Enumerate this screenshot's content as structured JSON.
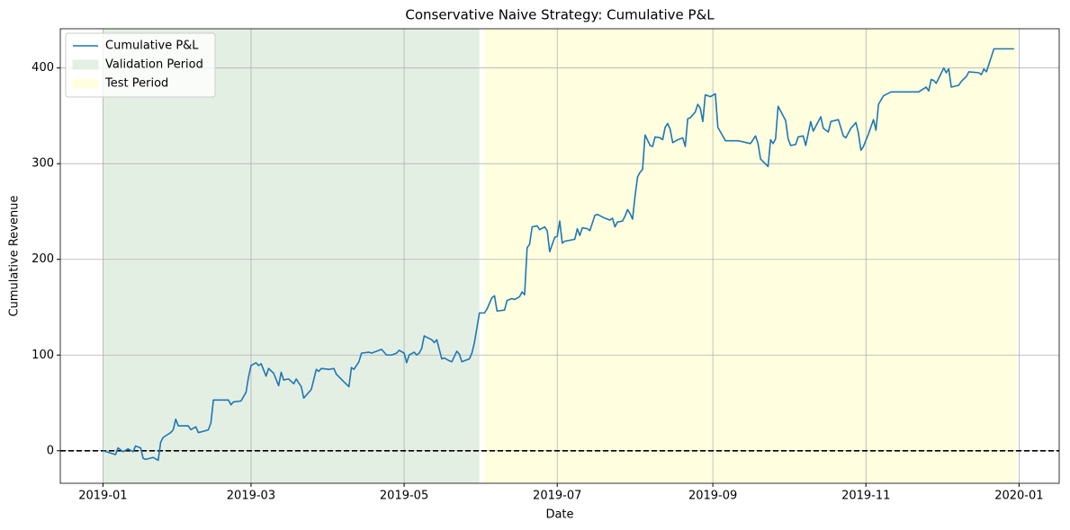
{
  "chart_data": {
    "type": "line",
    "title": "Conservative Naive Strategy: Cumulative P&L",
    "x_label": "Date",
    "y_label": "Cumulative Revenue",
    "x": [
      "2019-01-01",
      "2019-01-06",
      "2019-01-07",
      "2019-01-09",
      "2019-01-11",
      "2019-01-13",
      "2019-01-14",
      "2019-01-16",
      "2019-01-17",
      "2019-01-18",
      "2019-01-21",
      "2019-01-23",
      "2019-01-24",
      "2019-01-25",
      "2019-01-28",
      "2019-01-29",
      "2019-01-30",
      "2019-01-31",
      "2019-02-04",
      "2019-02-05",
      "2019-02-07",
      "2019-02-08",
      "2019-02-11",
      "2019-02-12",
      "2019-02-13",
      "2019-02-14",
      "2019-02-20",
      "2019-02-21",
      "2019-02-22",
      "2019-02-25",
      "2019-02-27",
      "2019-02-28",
      "2019-03-01",
      "2019-03-03",
      "2019-03-04",
      "2019-03-05",
      "2019-03-07",
      "2019-03-08",
      "2019-03-10",
      "2019-03-12",
      "2019-03-13",
      "2019-03-14",
      "2019-03-16",
      "2019-03-18",
      "2019-03-19",
      "2019-03-21",
      "2019-03-22",
      "2019-03-25",
      "2019-03-27",
      "2019-03-28",
      "2019-03-29",
      "2019-04-01",
      "2019-04-03",
      "2019-04-04",
      "2019-04-07",
      "2019-04-09",
      "2019-04-10",
      "2019-04-11",
      "2019-04-13",
      "2019-04-14",
      "2019-04-17",
      "2019-04-18",
      "2019-04-20",
      "2019-04-22",
      "2019-04-24",
      "2019-04-26",
      "2019-04-28",
      "2019-04-29",
      "2019-05-01",
      "2019-05-02",
      "2019-05-03",
      "2019-05-05",
      "2019-05-06",
      "2019-05-07",
      "2019-05-08",
      "2019-05-09",
      "2019-05-12",
      "2019-05-13",
      "2019-05-14",
      "2019-05-16",
      "2019-05-17",
      "2019-05-19",
      "2019-05-20",
      "2019-05-22",
      "2019-05-23",
      "2019-05-24",
      "2019-05-25",
      "2019-05-27",
      "2019-05-28",
      "2019-05-29",
      "2019-05-31",
      "2019-06-02",
      "2019-06-03",
      "2019-06-05",
      "2019-06-06",
      "2019-06-07",
      "2019-06-10",
      "2019-06-11",
      "2019-06-13",
      "2019-06-14",
      "2019-06-16",
      "2019-06-17",
      "2019-06-18",
      "2019-06-19",
      "2019-06-20",
      "2019-06-21",
      "2019-06-23",
      "2019-06-24",
      "2019-06-26",
      "2019-06-27",
      "2019-06-28",
      "2019-06-30",
      "2019-07-01",
      "2019-07-02",
      "2019-07-03",
      "2019-07-04",
      "2019-07-08",
      "2019-07-09",
      "2019-07-10",
      "2019-07-11",
      "2019-07-13",
      "2019-07-14",
      "2019-07-16",
      "2019-07-17",
      "2019-07-20",
      "2019-07-22",
      "2019-07-23",
      "2019-07-24",
      "2019-07-25",
      "2019-07-27",
      "2019-07-28",
      "2019-07-29",
      "2019-07-30",
      "2019-07-31",
      "2019-08-01",
      "2019-08-02",
      "2019-08-03",
      "2019-08-04",
      "2019-08-05",
      "2019-08-07",
      "2019-08-08",
      "2019-08-09",
      "2019-08-11",
      "2019-08-12",
      "2019-08-13",
      "2019-08-14",
      "2019-08-15",
      "2019-08-16",
      "2019-08-18",
      "2019-08-20",
      "2019-08-21",
      "2019-08-22",
      "2019-08-23",
      "2019-08-25",
      "2019-08-26",
      "2019-08-27",
      "2019-08-28",
      "2019-08-29",
      "2019-08-31",
      "2019-09-02",
      "2019-09-03",
      "2019-09-06",
      "2019-09-11",
      "2019-09-16",
      "2019-09-18",
      "2019-09-19",
      "2019-09-20",
      "2019-09-23",
      "2019-09-24",
      "2019-09-25",
      "2019-09-26",
      "2019-09-27",
      "2019-09-30",
      "2019-10-01",
      "2019-10-02",
      "2019-10-04",
      "2019-10-05",
      "2019-10-07",
      "2019-10-08",
      "2019-10-10",
      "2019-10-11",
      "2019-10-14",
      "2019-10-15",
      "2019-10-17",
      "2019-10-18",
      "2019-10-21",
      "2019-10-23",
      "2019-10-24",
      "2019-10-26",
      "2019-10-28",
      "2019-10-29",
      "2019-10-30",
      "2019-10-31",
      "2019-11-02",
      "2019-11-04",
      "2019-11-05",
      "2019-11-06",
      "2019-11-08",
      "2019-11-11",
      "2019-11-22",
      "2019-11-25",
      "2019-11-26",
      "2019-11-27",
      "2019-11-28",
      "2019-11-29",
      "2019-12-02",
      "2019-12-03",
      "2019-12-04",
      "2019-12-05",
      "2019-12-08",
      "2019-12-09",
      "2019-12-11",
      "2019-12-12",
      "2019-12-16",
      "2019-12-17",
      "2019-12-18",
      "2019-12-19",
      "2019-12-22",
      "2019-12-30"
    ],
    "series": [
      {
        "name": "Cumulative P&L",
        "color": "#1f77b4",
        "values": [
          0,
          -4,
          3,
          -1,
          2,
          -1,
          5,
          3,
          -8,
          -9,
          -7,
          -10,
          9,
          14,
          19,
          22,
          33,
          26,
          26,
          22,
          25,
          19,
          21,
          22,
          29,
          53,
          53,
          48,
          51,
          52,
          61,
          77,
          89,
          92,
          89,
          91,
          78,
          86,
          81,
          68,
          82,
          74,
          75,
          70,
          75,
          67,
          55,
          64,
          85,
          83,
          86,
          85,
          86,
          80,
          72,
          67,
          87,
          85,
          93,
          102,
          103,
          102,
          104,
          106,
          100,
          100,
          102,
          105,
          102,
          92,
          100,
          103,
          100,
          102,
          107,
          120,
          116,
          113,
          116,
          96,
          97,
          94,
          93,
          104,
          101,
          93,
          94,
          96,
          102,
          113,
          144,
          144,
          148,
          160,
          162,
          146,
          147,
          157,
          159,
          158,
          161,
          166,
          163,
          212,
          216,
          234,
          235,
          231,
          234,
          230,
          208,
          223,
          224,
          240,
          217,
          219,
          221,
          232,
          225,
          233,
          232,
          230,
          246,
          247,
          243,
          241,
          243,
          234,
          239,
          240,
          245,
          252,
          248,
          242,
          266,
          286,
          291,
          294,
          330,
          319,
          318,
          328,
          327,
          325,
          338,
          342,
          336,
          322,
          325,
          327,
          318,
          347,
          348,
          354,
          362,
          358,
          344,
          372,
          370,
          373,
          338,
          324,
          324,
          321,
          329,
          321,
          305,
          297,
          325,
          321,
          326,
          360,
          345,
          326,
          319,
          320,
          328,
          329,
          319,
          344,
          334,
          349,
          337,
          333,
          344,
          346,
          329,
          327,
          337,
          343,
          332,
          314,
          318,
          331,
          346,
          335,
          362,
          371,
          375,
          375,
          380,
          376,
          388,
          387,
          384,
          400,
          395,
          399,
          380,
          382,
          386,
          391,
          396,
          395,
          393,
          399,
          396,
          420,
          420
        ]
      }
    ],
    "spans": [
      {
        "name": "Validation Period",
        "color": "#e4efe4",
        "start": "2019-01-01",
        "end": "2019-05-31"
      },
      {
        "name": "Test Period",
        "color": "#ffffe0",
        "start": "2019-06-02",
        "end": "2019-12-31"
      }
    ],
    "hline": {
      "y": 0,
      "color": "#000000",
      "style": "dashed"
    },
    "xlim": [
      "2018-12-15",
      "2020-01-17"
    ],
    "ylim": [
      -34,
      441
    ],
    "xticks": [
      {
        "value": "2019-01-01",
        "label": "2019-01"
      },
      {
        "value": "2019-03-01",
        "label": "2019-03"
      },
      {
        "value": "2019-05-01",
        "label": "2019-05"
      },
      {
        "value": "2019-07-01",
        "label": "2019-07"
      },
      {
        "value": "2019-09-01",
        "label": "2019-09"
      },
      {
        "value": "2019-11-01",
        "label": "2019-11"
      },
      {
        "value": "2020-01-01",
        "label": "2020-01"
      }
    ],
    "yticks": [
      0,
      100,
      200,
      300,
      400
    ],
    "grid": true,
    "legend": "upper left"
  }
}
